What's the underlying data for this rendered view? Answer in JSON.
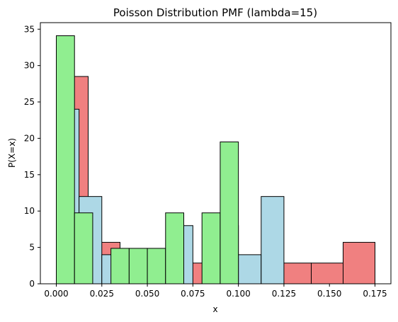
{
  "chart_data": {
    "type": "bar",
    "title": "Poisson Distribution PMF (lambda=15)",
    "xlabel": "x",
    "ylabel": "P(X=x)",
    "xlim": [
      -0.00875,
      0.18375
    ],
    "ylim": [
      0,
      35.9
    ],
    "x_ticks": [
      "0.000",
      "0.025",
      "0.050",
      "0.075",
      "0.100",
      "0.125",
      "0.150",
      "0.175"
    ],
    "y_ticks": [
      "0",
      "5",
      "10",
      "15",
      "20",
      "25",
      "30",
      "35"
    ],
    "grid": false,
    "legend": "none",
    "series": [
      {
        "color": "#f08080",
        "bins": [
          {
            "x0": 0.0,
            "x1": 0.0175,
            "value": 28.5
          },
          {
            "x0": 0.0175,
            "x1": 0.035,
            "value": 5.7
          },
          {
            "x0": 0.035,
            "x1": 0.0525,
            "value": 2.85
          },
          {
            "x0": 0.0525,
            "x1": 0.07,
            "value": 2.85
          },
          {
            "x0": 0.07,
            "x1": 0.0875,
            "value": 2.85
          },
          {
            "x0": 0.0875,
            "x1": 0.105,
            "value": 2.85
          },
          {
            "x0": 0.105,
            "x1": 0.1225,
            "value": 2.85
          },
          {
            "x0": 0.1225,
            "x1": 0.14,
            "value": 2.85
          },
          {
            "x0": 0.14,
            "x1": 0.1575,
            "value": 2.85
          },
          {
            "x0": 0.1575,
            "x1": 0.175,
            "value": 5.7
          }
        ]
      },
      {
        "color": "#add8e6",
        "bins": [
          {
            "x0": 0.0,
            "x1": 0.0125,
            "value": 24.0
          },
          {
            "x0": 0.0125,
            "x1": 0.025,
            "value": 12.0
          },
          {
            "x0": 0.025,
            "x1": 0.0375,
            "value": 4.0
          },
          {
            "x0": 0.0375,
            "x1": 0.05,
            "value": 4.0
          },
          {
            "x0": 0.05,
            "x1": 0.0625,
            "value": 4.0
          },
          {
            "x0": 0.0625,
            "x1": 0.075,
            "value": 8.0
          },
          {
            "x0": 0.075,
            "x1": 0.0875,
            "value": 0.0
          },
          {
            "x0": 0.0875,
            "x1": 0.1,
            "value": 8.0
          },
          {
            "x0": 0.1,
            "x1": 0.1125,
            "value": 4.0
          },
          {
            "x0": 0.1125,
            "x1": 0.125,
            "value": 12.0
          }
        ]
      },
      {
        "color": "#90ee90",
        "bins": [
          {
            "x0": 0.0,
            "x1": 0.01,
            "value": 34.1
          },
          {
            "x0": 0.01,
            "x1": 0.02,
            "value": 9.75
          },
          {
            "x0": 0.02,
            "x1": 0.03,
            "value": 0.0
          },
          {
            "x0": 0.03,
            "x1": 0.04,
            "value": 4.87
          },
          {
            "x0": 0.04,
            "x1": 0.05,
            "value": 4.87
          },
          {
            "x0": 0.05,
            "x1": 0.06,
            "value": 4.87
          },
          {
            "x0": 0.06,
            "x1": 0.07,
            "value": 9.75
          },
          {
            "x0": 0.07,
            "x1": 0.08,
            "value": 0.0
          },
          {
            "x0": 0.08,
            "x1": 0.09,
            "value": 9.75
          },
          {
            "x0": 0.09,
            "x1": 0.1,
            "value": 19.5
          }
        ]
      }
    ]
  }
}
